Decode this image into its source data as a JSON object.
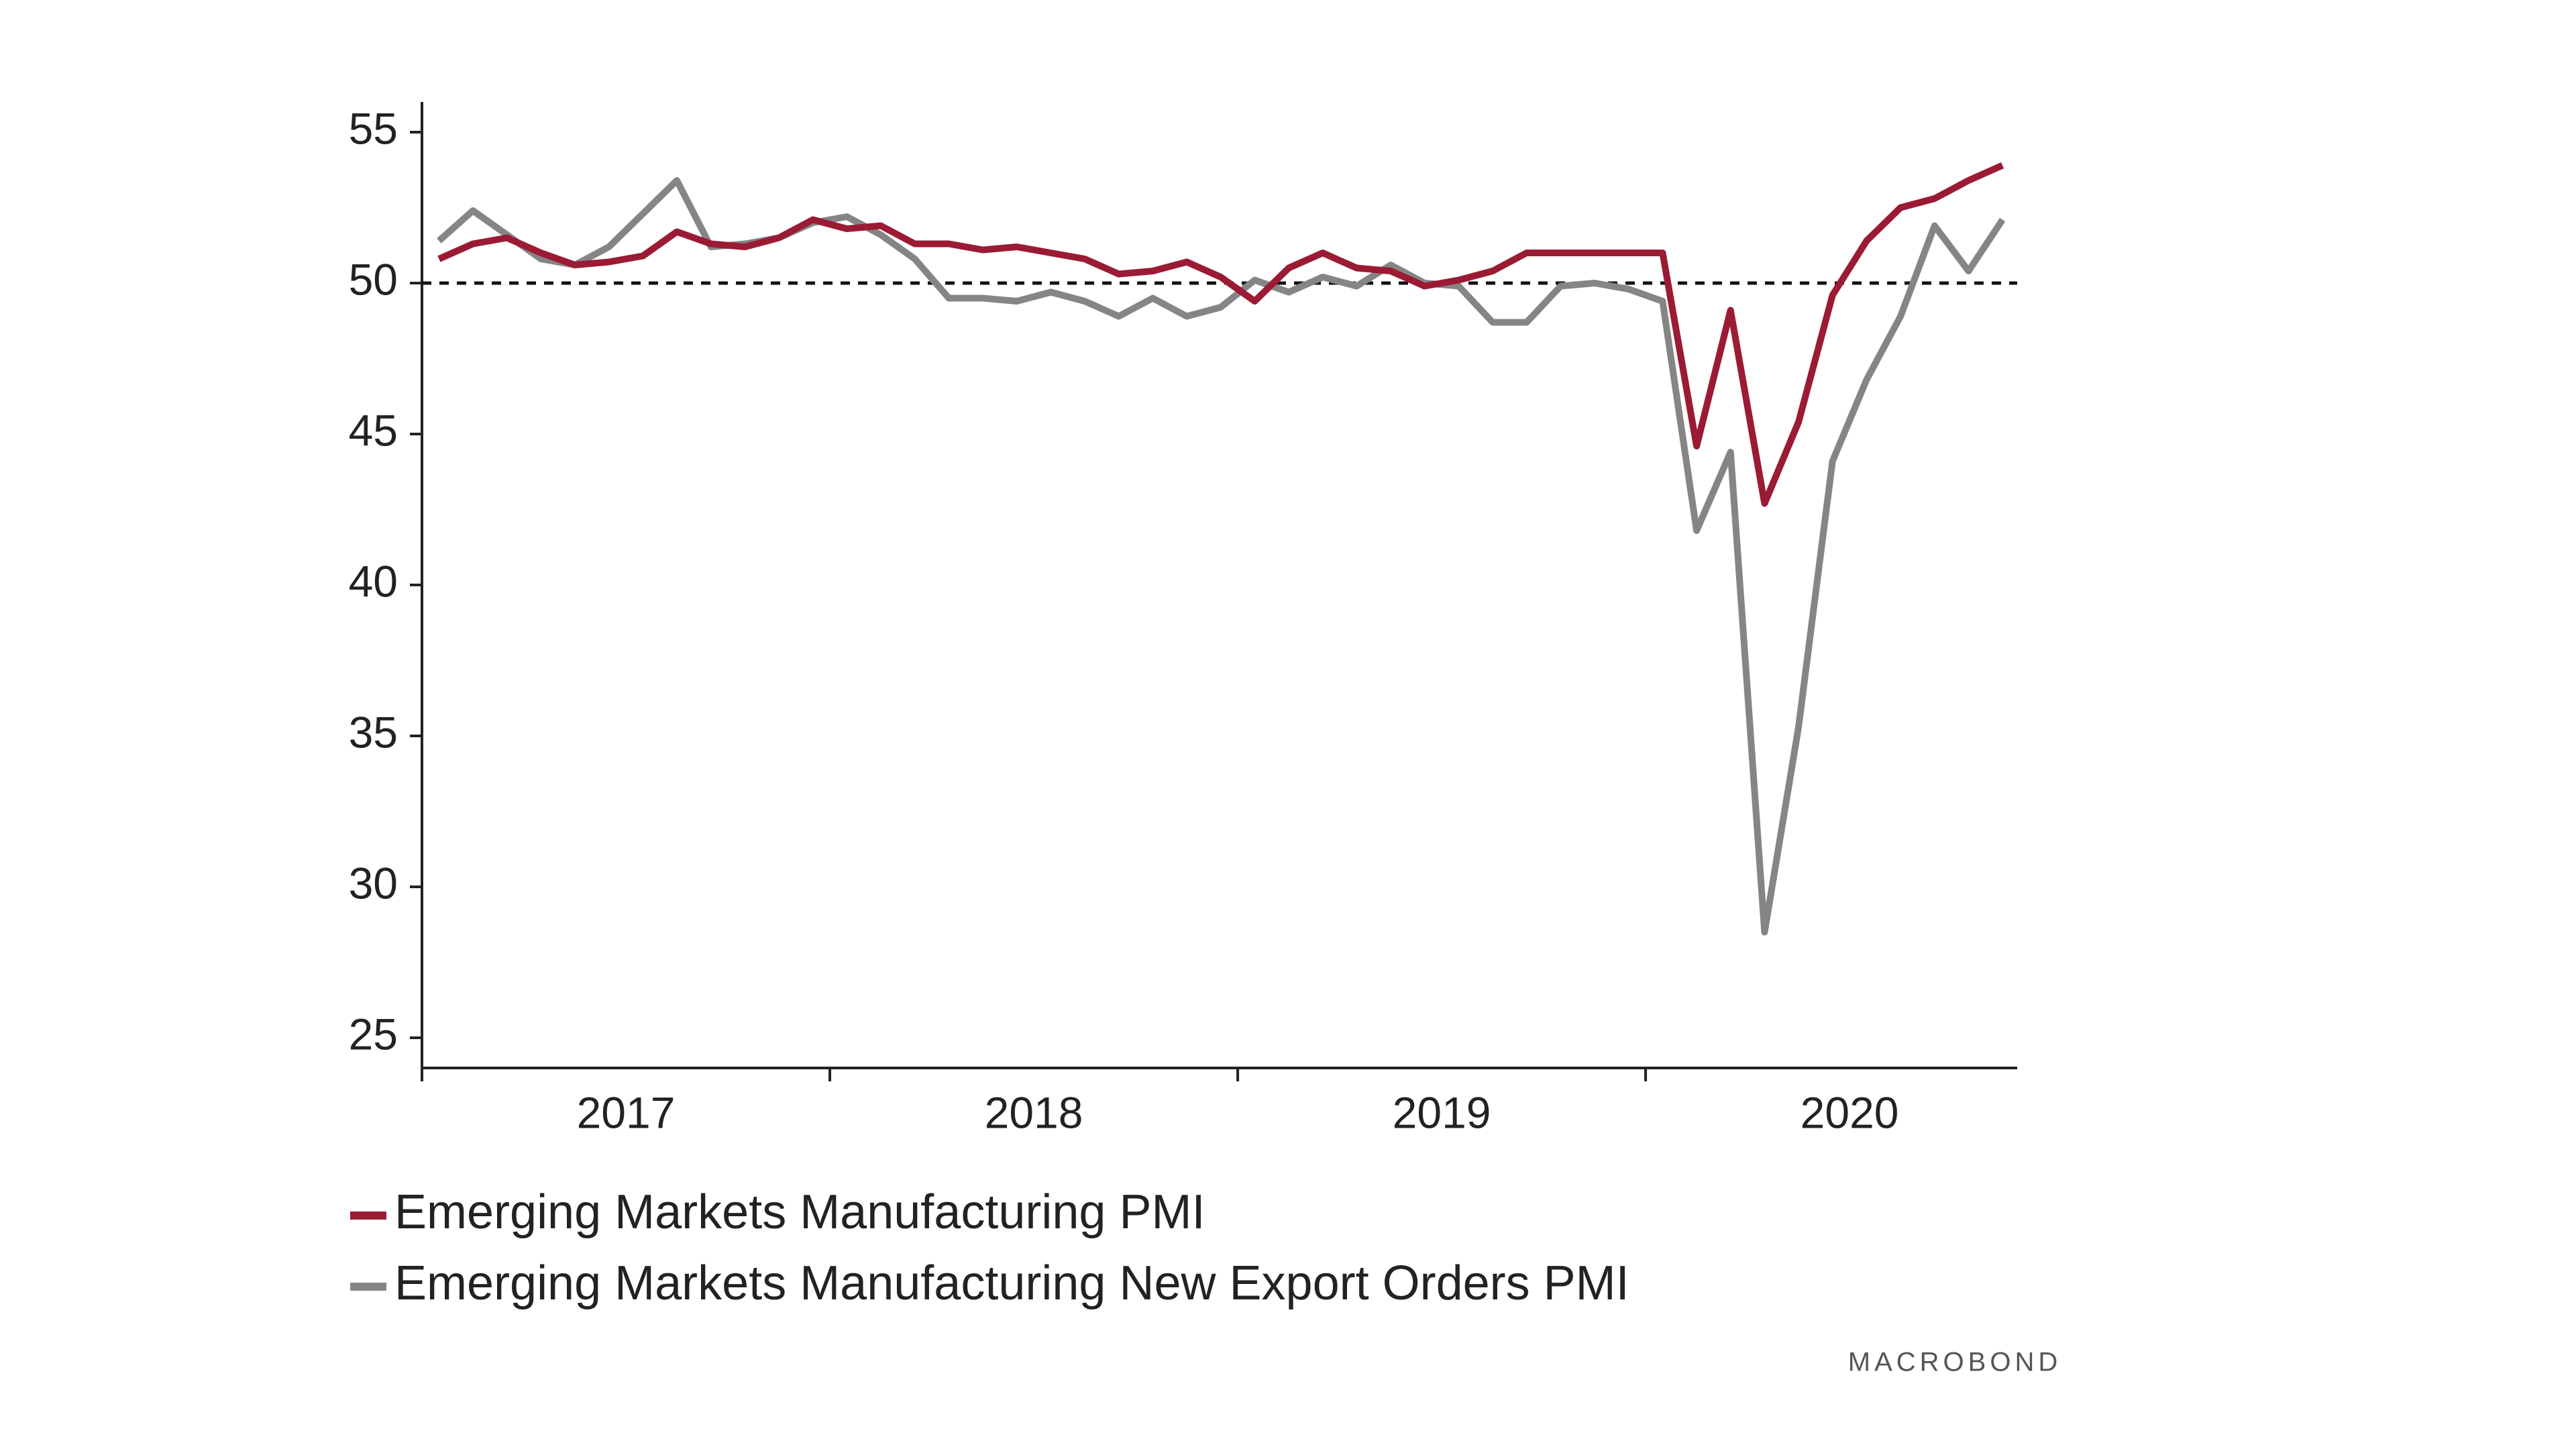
{
  "chart_data": {
    "type": "line",
    "x": [
      2017.0417,
      2017.125,
      2017.2083,
      2017.2917,
      2017.375,
      2017.4583,
      2017.5417,
      2017.625,
      2017.7083,
      2017.7917,
      2017.875,
      2017.9583,
      2018.0417,
      2018.125,
      2018.2083,
      2018.2917,
      2018.375,
      2018.4583,
      2018.5417,
      2018.625,
      2018.7083,
      2018.7917,
      2018.875,
      2018.9583,
      2019.0417,
      2019.125,
      2019.2083,
      2019.2917,
      2019.375,
      2019.4583,
      2019.5417,
      2019.625,
      2019.7083,
      2019.7917,
      2019.875,
      2019.9583,
      2020.0417,
      2020.125,
      2020.2083,
      2020.2917,
      2020.375,
      2020.4583,
      2020.5417,
      2020.625,
      2020.7083,
      2020.7917,
      2020.875
    ],
    "series": [
      {
        "name": "Emerging Markets Manufacturing PMI",
        "color": "#9b1b34",
        "values": [
          50.8,
          51.3,
          51.5,
          51.0,
          50.6,
          50.7,
          50.9,
          51.7,
          51.3,
          51.2,
          51.5,
          52.1,
          51.8,
          51.9,
          51.3,
          51.3,
          51.1,
          51.2,
          51.0,
          50.8,
          50.3,
          50.4,
          50.7,
          50.2,
          49.4,
          50.5,
          51.0,
          50.5,
          50.4,
          49.9,
          50.1,
          50.4,
          51.0,
          51.0,
          51.0,
          51.0,
          51.0,
          44.6,
          49.1,
          42.7,
          45.4,
          49.6,
          51.4,
          52.5,
          52.8,
          53.4,
          53.9
        ]
      },
      {
        "name": "Emerging Markets Manufacturing New Export Orders PMI",
        "color": "#858585",
        "values": [
          51.4,
          52.4,
          51.6,
          50.8,
          50.6,
          51.2,
          52.3,
          53.4,
          51.2,
          51.3,
          51.5,
          52.0,
          52.2,
          51.6,
          50.8,
          49.5,
          49.5,
          49.4,
          49.7,
          49.4,
          48.9,
          49.5,
          48.9,
          49.2,
          50.1,
          49.7,
          50.2,
          49.9,
          50.6,
          50.0,
          49.9,
          48.7,
          48.7,
          49.9,
          50.0,
          49.8,
          49.4,
          41.8,
          44.4,
          28.5,
          35.3,
          44.1,
          46.8,
          48.9,
          51.9,
          50.4,
          52.1
        ]
      }
    ],
    "xlim": [
      2017,
      2020.911
    ],
    "xticks": [
      2017,
      2018,
      2019,
      2020
    ],
    "ylim": [
      24,
      56
    ],
    "yticks": [
      25,
      30,
      35,
      40,
      45,
      50,
      55
    ],
    "reference_line": 50,
    "grid": false,
    "legend": "bottom",
    "source": "MACROBOND"
  }
}
